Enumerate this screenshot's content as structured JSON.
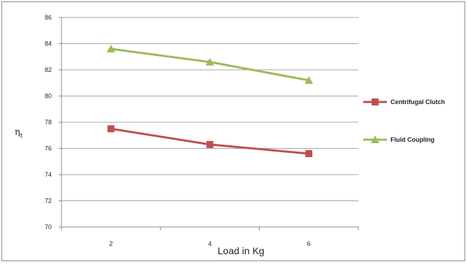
{
  "chart_data": {
    "type": "line",
    "x": [
      2,
      4,
      6
    ],
    "xtick_labels": [
      "2",
      "4",
      "6"
    ],
    "xlabel": "Load in Kg",
    "ylabel": "ηt",
    "ylabel_main": "η",
    "ylabel_sub": "t",
    "ylim": [
      70,
      86
    ],
    "ytick_labels": [
      "70",
      "72",
      "74",
      "76",
      "78",
      "80",
      "82",
      "84",
      "86"
    ],
    "grid": "horizontal",
    "legend_position": "right",
    "series": [
      {
        "name": "Centrifugal Clutch",
        "values": [
          77.5,
          76.3,
          75.6
        ],
        "color": "#c0504d",
        "marker": "square"
      },
      {
        "name": "Fluid Coupling",
        "values": [
          83.6,
          82.6,
          81.2
        ],
        "color": "#9bbb59",
        "marker": "triangle"
      }
    ]
  }
}
